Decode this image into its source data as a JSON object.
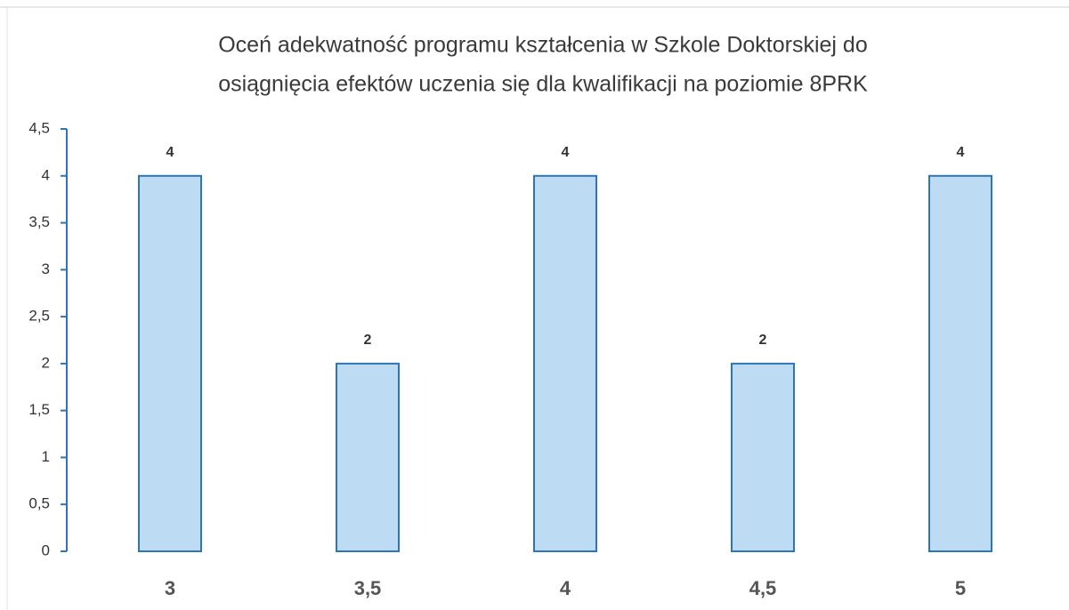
{
  "chart_data": {
    "type": "bar",
    "title": [
      "Oceń adekwatność programu kształcenia w Szkole Doktorskiej do",
      "osiągnięcia efektów uczenia się dla kwalifikacji na poziomie 8PRK"
    ],
    "categories": [
      "3",
      "3,5",
      "4",
      "4,5",
      "5"
    ],
    "values": [
      4,
      2,
      4,
      2,
      4
    ],
    "color": "#bddcf3",
    "edge_color": "#2e75b6",
    "ylim": [
      0,
      4.5
    ],
    "yticks": [
      0,
      {
        "value": 0.5,
        "label": "0,5"
      },
      1,
      {
        "value": 1.5,
        "label": "1,5"
      },
      2,
      {
        "value": 2.5,
        "label": "2,5"
      },
      3,
      {
        "value": 3.5,
        "label": "3,5"
      },
      4,
      {
        "value": 4.5,
        "label": "4,5"
      }
    ],
    "grid": false
  }
}
